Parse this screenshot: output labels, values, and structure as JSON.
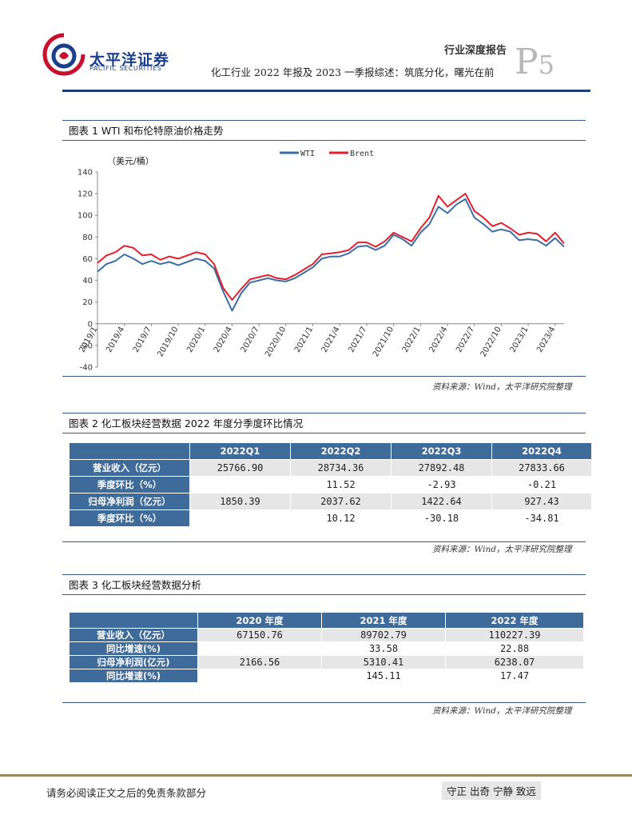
{
  "header": {
    "logo_cn": "太平洋证券",
    "logo_en": "PACIFIC SECURITIES",
    "report_type": "行业深度报告",
    "report_title": "化工行业 2022 年报及 2023 一季报综述：筑底分化，曙光在前",
    "page_letter": "P",
    "page_number": "5",
    "colors": {
      "brand_blue": "#1a3f8c",
      "brand_red": "#c8102e",
      "rule": "#1f3f78"
    }
  },
  "figure1": {
    "caption": "图表 1 WTI 和布伦特原油价格走势",
    "source": "资料来源：Wind，太平洋研究院整理"
  },
  "chart_data": {
    "type": "line",
    "title": "",
    "ylabel": "（美元/桶）",
    "xlabel": "",
    "ylim": [
      -40,
      140
    ],
    "yticks": [
      -40,
      -20,
      0,
      20,
      40,
      60,
      80,
      100,
      120,
      140
    ],
    "x": [
      "2019/1",
      "2019/2",
      "2019/3",
      "2019/4",
      "2019/5",
      "2019/6",
      "2019/7",
      "2019/8",
      "2019/9",
      "2019/10",
      "2019/11",
      "2019/12",
      "2020/1",
      "2020/2",
      "2020/3",
      "2020/4",
      "2020/5",
      "2020/6",
      "2020/7",
      "2020/8",
      "2020/9",
      "2020/10",
      "2020/11",
      "2020/12",
      "2021/1",
      "2021/2",
      "2021/3",
      "2021/4",
      "2021/5",
      "2021/6",
      "2021/7",
      "2021/8",
      "2021/9",
      "2021/10",
      "2021/11",
      "2021/12",
      "2022/1",
      "2022/2",
      "2022/3",
      "2022/4",
      "2022/5",
      "2022/6",
      "2022/7",
      "2022/8",
      "2022/9",
      "2022/10",
      "2022/11",
      "2022/12",
      "2023/1",
      "2023/2",
      "2023/3",
      "2023/4",
      "2023/5"
    ],
    "xticks": [
      "2019/1",
      "2019/4",
      "2019/7",
      "2019/10",
      "2020/1",
      "2020/4",
      "2020/7",
      "2020/10",
      "2021/1",
      "2021/4",
      "2021/7",
      "2021/10",
      "2022/1",
      "2022/4",
      "2022/7",
      "2022/10",
      "2023/1",
      "2023/4"
    ],
    "legend_position": "top",
    "grid": false,
    "series": [
      {
        "name": "WTI",
        "color": "#3b6ea5",
        "values": [
          48,
          55,
          58,
          64,
          60,
          55,
          58,
          55,
          57,
          54,
          57,
          60,
          58,
          51,
          30,
          12,
          28,
          38,
          40,
          42,
          40,
          39,
          42,
          47,
          52,
          60,
          62,
          62,
          65,
          71,
          72,
          68,
          72,
          82,
          78,
          72,
          84,
          92,
          108,
          102,
          110,
          115,
          98,
          92,
          85,
          87,
          85,
          77,
          78,
          77,
          72,
          79,
          71
        ]
      },
      {
        "name": "Brent",
        "color": "#e2202c",
        "values": [
          56,
          63,
          66,
          72,
          70,
          63,
          64,
          59,
          62,
          60,
          63,
          66,
          64,
          55,
          33,
          22,
          32,
          41,
          43,
          45,
          42,
          41,
          45,
          50,
          55,
          64,
          65,
          66,
          68,
          75,
          75,
          71,
          76,
          84,
          80,
          76,
          88,
          98,
          118,
          108,
          114,
          120,
          104,
          98,
          90,
          93,
          88,
          82,
          84,
          83,
          76,
          84,
          74
        ]
      }
    ]
  },
  "figure2": {
    "caption": "图表 2 化工板块经营数据 2022 年度分季度环比情况",
    "source": "资料来源：Wind，太平洋研究院整理",
    "columns": [
      "",
      "2022Q1",
      "2022Q2",
      "2022Q3",
      "2022Q4"
    ],
    "rows": [
      {
        "label": "营业收入（亿元）",
        "values": [
          "25766.90",
          "28734.36",
          "27892.48",
          "27833.66"
        ]
      },
      {
        "label": "季度环比（%）",
        "values": [
          "",
          "11.52",
          "-2.93",
          "-0.21"
        ]
      },
      {
        "label": "归母净利润（亿元）",
        "values": [
          "1850.39",
          "2037.62",
          "1422.64",
          "927.43"
        ]
      },
      {
        "label": "季度环比（%）",
        "values": [
          "",
          "10.12",
          "-30.18",
          "-34.81"
        ]
      }
    ]
  },
  "figure3": {
    "caption": "图表 3 化工板块经营数据分析",
    "source": "资料来源：Wind，太平洋研究院整理",
    "columns": [
      "",
      "2020 年度",
      "2021 年度",
      "2022 年度"
    ],
    "rows": [
      {
        "label": "营业收入（亿元）",
        "values": [
          "67150.76",
          "89702.79",
          "110227.39"
        ]
      },
      {
        "label": "同比增速(%)",
        "values": [
          "",
          "33.58",
          "22.88"
        ]
      },
      {
        "label": "归母净利润(亿元)",
        "values": [
          "2166.56",
          "5310.41",
          "6238.07"
        ]
      },
      {
        "label": "同比增速(%)",
        "values": [
          "",
          "145.11",
          "17.47"
        ]
      }
    ]
  },
  "footer": {
    "disclaimer": "请务必阅读正文之后的免责条款部分",
    "motto": "守正 出奇 宁静 致远"
  }
}
